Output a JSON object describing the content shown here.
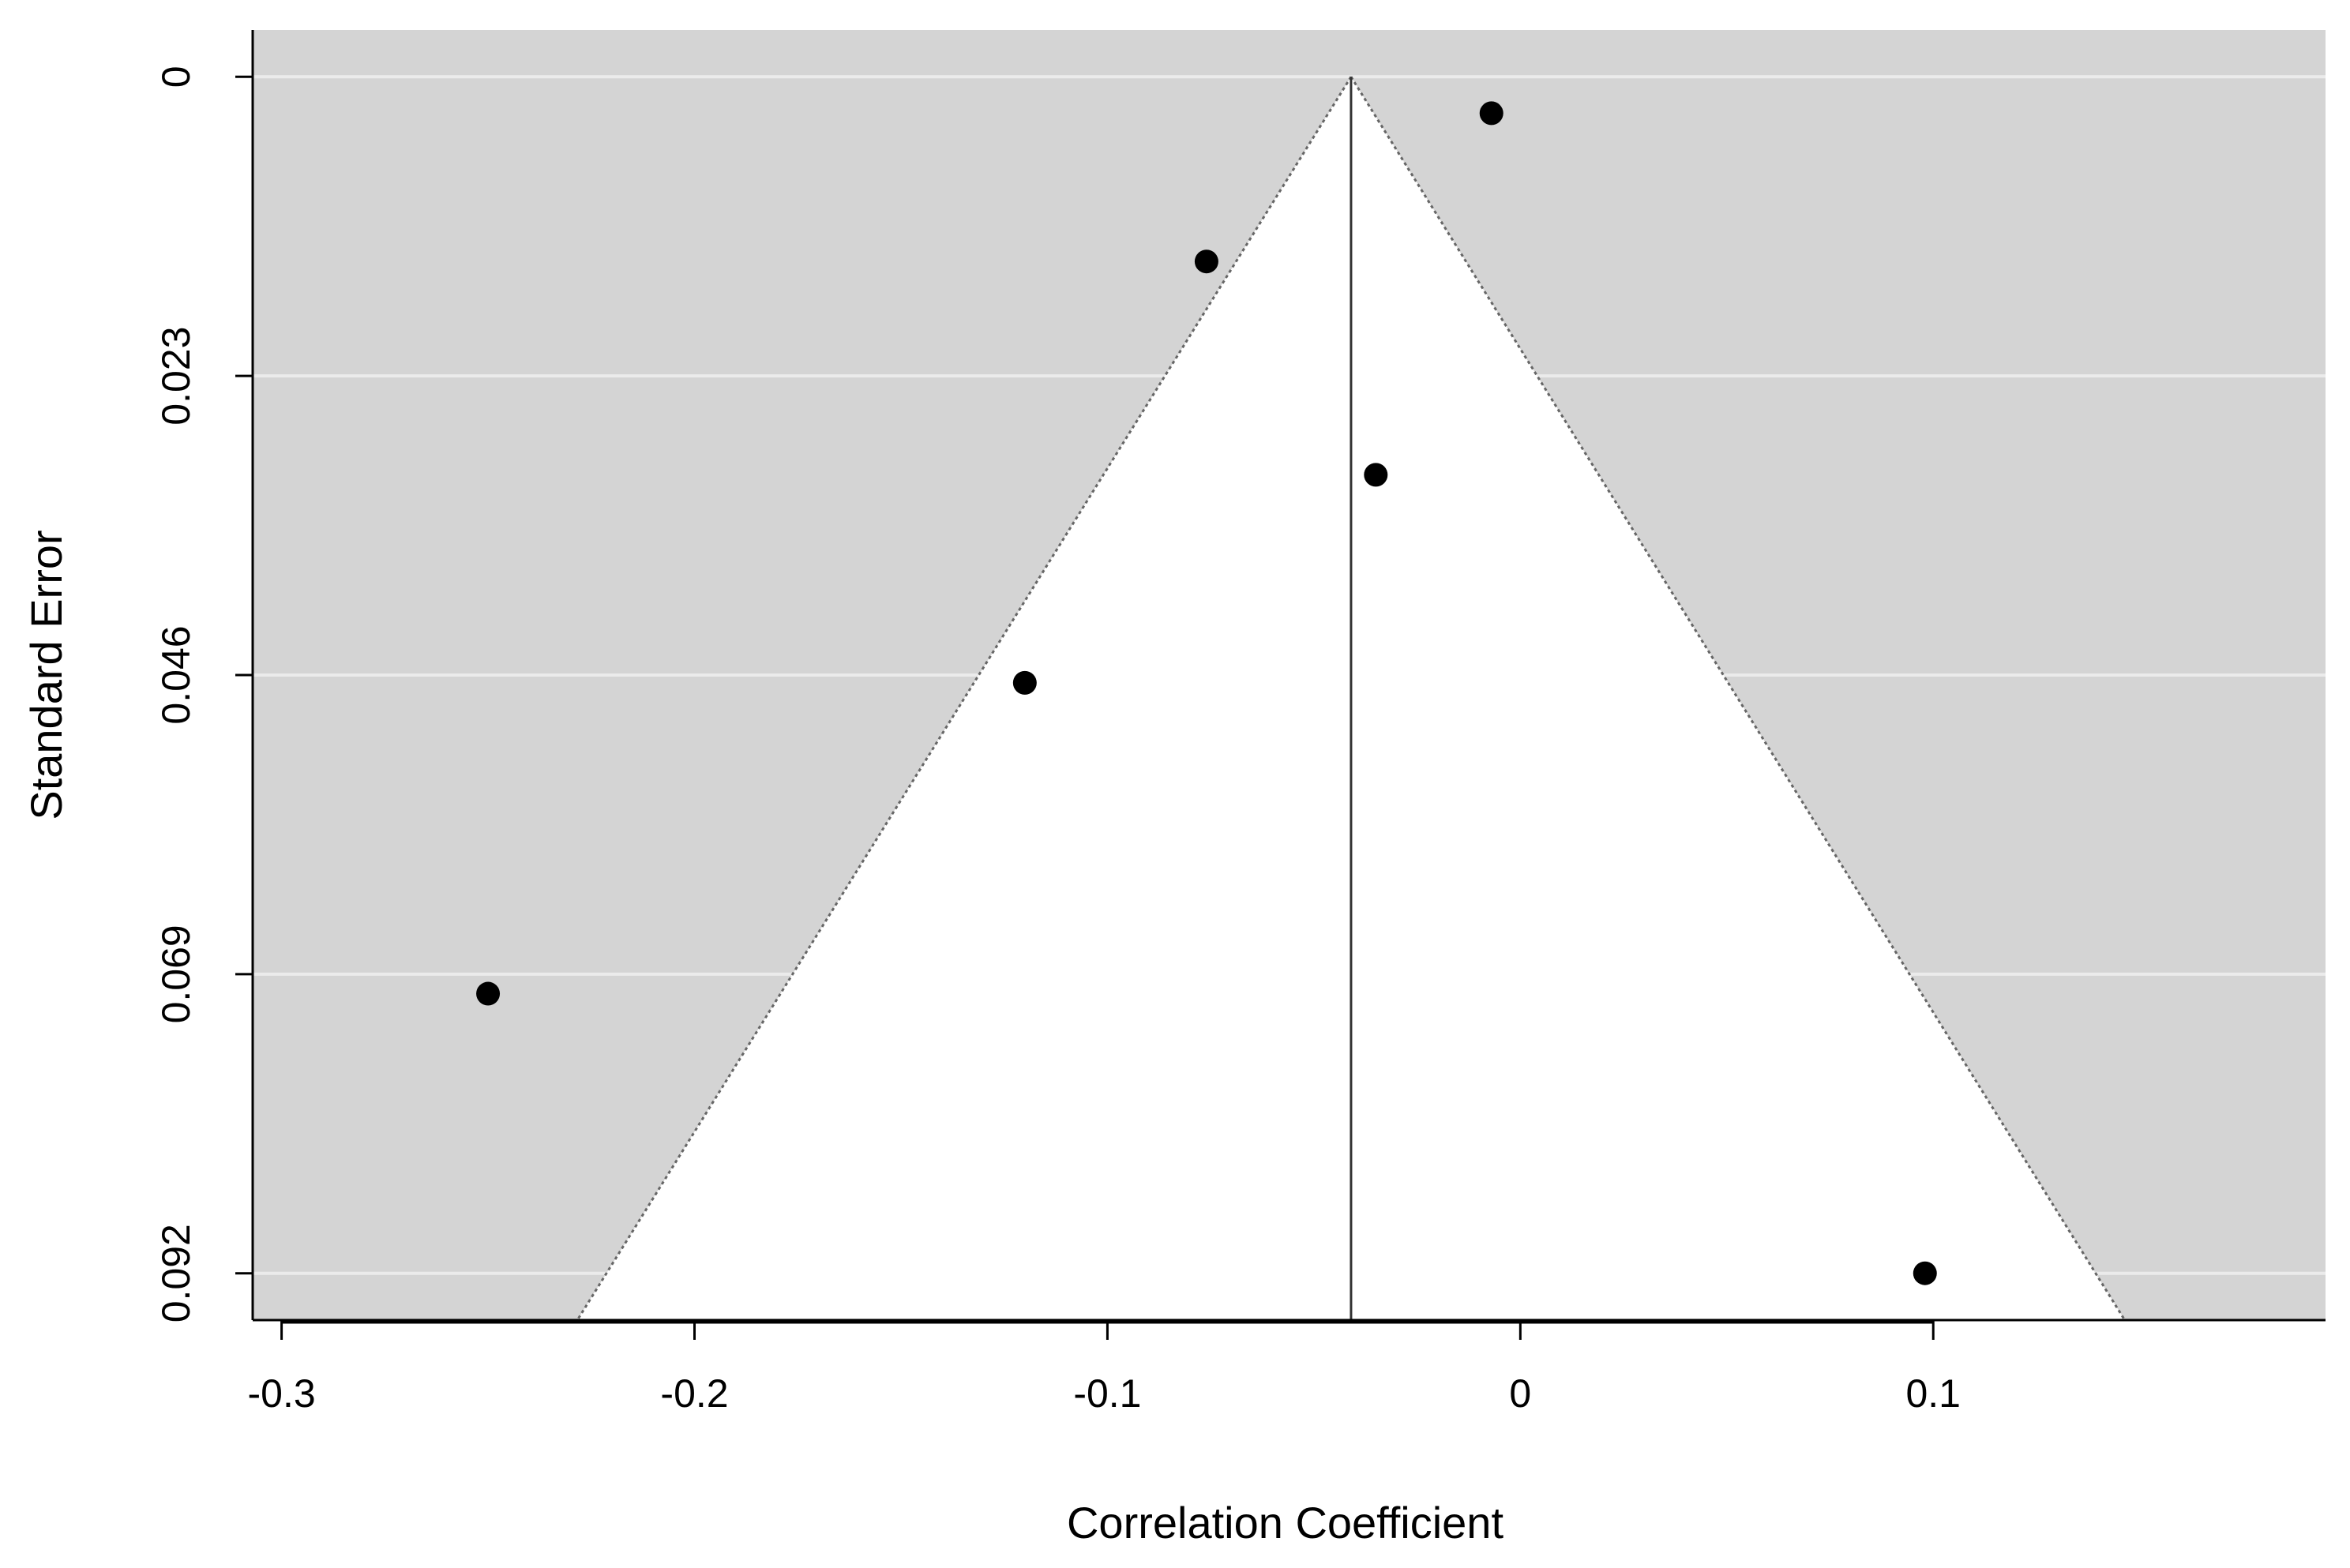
{
  "chart_data": {
    "type": "scatter",
    "subtype": "funnel",
    "title": "",
    "xlabel": "Correlation Coefficient",
    "ylabel": "Standard Error",
    "xlim": [
      -0.307,
      0.195
    ],
    "ylim": [
      0.0956,
      -0.0036
    ],
    "y_reversed": true,
    "x_ticks": [
      -0.3,
      -0.2,
      -0.1,
      0,
      0.1
    ],
    "x_tick_labels": [
      "-0.3",
      "-0.2",
      "-0.1",
      "0",
      "0.1"
    ],
    "y_ticks": [
      0,
      0.023,
      0.046,
      0.069,
      0.092
    ],
    "y_tick_labels": [
      "0",
      "0.023",
      "0.046",
      "0.069",
      "0.092"
    ],
    "grid": true,
    "grid_axis": "y",
    "estimate": -0.041,
    "funnel_multiplier": 1.96,
    "points": [
      {
        "x": -0.25,
        "y": 0.0705
      },
      {
        "x": -0.12,
        "y": 0.0466
      },
      {
        "x": -0.076,
        "y": 0.0142
      },
      {
        "x": -0.035,
        "y": 0.0306
      },
      {
        "x": -0.007,
        "y": 0.0028
      },
      {
        "x": 0.098,
        "y": 0.092
      }
    ],
    "colors": {
      "outer_region": "#d4d4d4",
      "funnel_region": "#ffffff",
      "gridline": "#ebebeb",
      "funnel_line": "#666666",
      "points": "#000000",
      "axes": "#000000"
    }
  }
}
